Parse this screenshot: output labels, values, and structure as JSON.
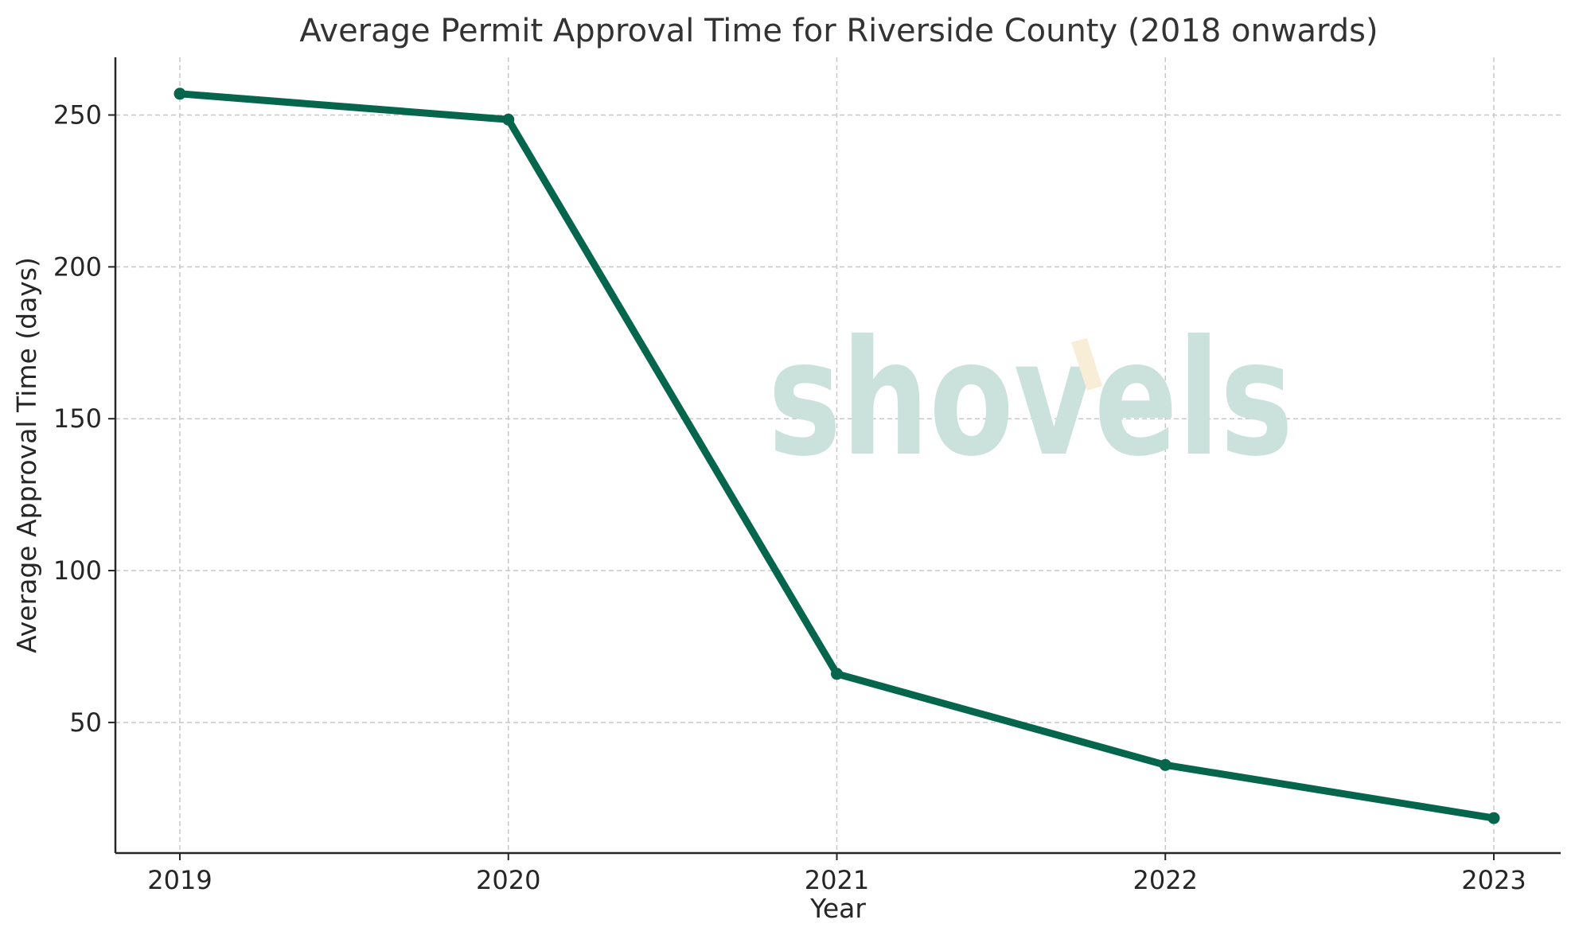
{
  "chart_data": {
    "type": "line",
    "title": "Average Permit Approval Time for Riverside County (2018 onwards)",
    "xlabel": "Year",
    "ylabel": "Average Approval Time (days)",
    "categories": [
      "2019",
      "2020",
      "2021",
      "2022",
      "2023"
    ],
    "series": [
      {
        "values": [
          257,
          248.5,
          66,
          36,
          18.5
        ]
      }
    ],
    "ylim": [
      7,
      269
    ],
    "yticks": [
      50,
      100,
      150,
      200,
      250
    ],
    "grid": true,
    "colors": {
      "line": "#05654d",
      "grid": "#c8c8c8",
      "axis": "#262626"
    }
  },
  "watermark": {
    "text": "shovels",
    "color": "#cbe1dc",
    "accent_color": "#f8eed8"
  }
}
